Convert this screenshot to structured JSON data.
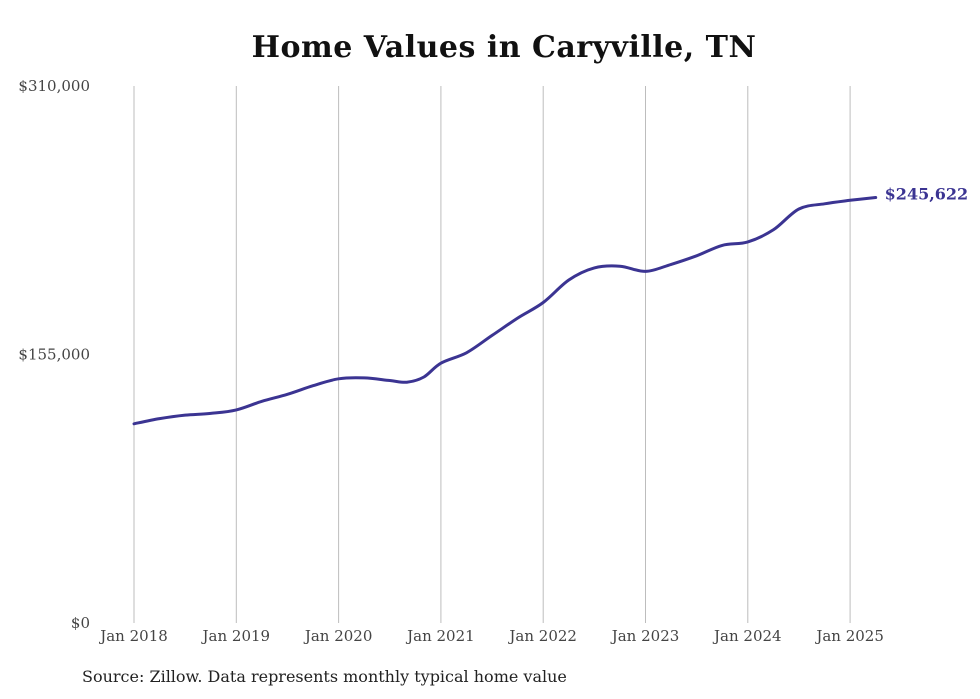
{
  "title": "Home Values in Caryville, TN",
  "source": "Source: Zillow. Data represents monthly typical home value",
  "colors": {
    "line": "#3b3492",
    "grid": "#bdbdbd",
    "text": "#444444"
  },
  "chart_data": {
    "type": "line",
    "title": "Home Values in Caryville, TN",
    "xlabel": "",
    "ylabel": "",
    "ylim": [
      0,
      310000
    ],
    "y_ticks": [
      0,
      155000,
      310000
    ],
    "y_tick_labels": [
      "$0",
      "$155,000",
      "$310,000"
    ],
    "x_ticks": [
      "2018-01",
      "2019-01",
      "2020-01",
      "2021-01",
      "2022-01",
      "2023-01",
      "2024-01",
      "2025-01"
    ],
    "x_tick_labels": [
      "Jan 2018",
      "Jan 2019",
      "Jan 2020",
      "Jan 2021",
      "Jan 2022",
      "Jan 2023",
      "Jan 2024",
      "Jan 2025"
    ],
    "grid": {
      "vertical": true,
      "horizontal": false
    },
    "end_label": "$245,622",
    "series": [
      {
        "values": [
          [
            "2018-01",
            115000
          ],
          [
            "2018-04",
            118000
          ],
          [
            "2018-07",
            120000
          ],
          [
            "2018-10",
            121000
          ],
          [
            "2019-01",
            123000
          ],
          [
            "2019-04",
            128000
          ],
          [
            "2019-07",
            132000
          ],
          [
            "2019-10",
            137000
          ],
          [
            "2020-01",
            141000
          ],
          [
            "2020-04",
            141500
          ],
          [
            "2020-07",
            140000
          ],
          [
            "2020-09",
            139000
          ],
          [
            "2020-11",
            142000
          ],
          [
            "2021-01",
            150000
          ],
          [
            "2021-04",
            156000
          ],
          [
            "2021-07",
            166000
          ],
          [
            "2021-10",
            176000
          ],
          [
            "2022-01",
            185000
          ],
          [
            "2022-04",
            198000
          ],
          [
            "2022-07",
            205000
          ],
          [
            "2022-10",
            206000
          ],
          [
            "2023-01",
            203000
          ],
          [
            "2023-04",
            207000
          ],
          [
            "2023-07",
            212000
          ],
          [
            "2023-10",
            218000
          ],
          [
            "2024-01",
            220000
          ],
          [
            "2024-04",
            227000
          ],
          [
            "2024-07",
            239000
          ],
          [
            "2024-10",
            242000
          ],
          [
            "2025-01",
            244000
          ],
          [
            "2025-04",
            245622
          ]
        ]
      }
    ]
  }
}
